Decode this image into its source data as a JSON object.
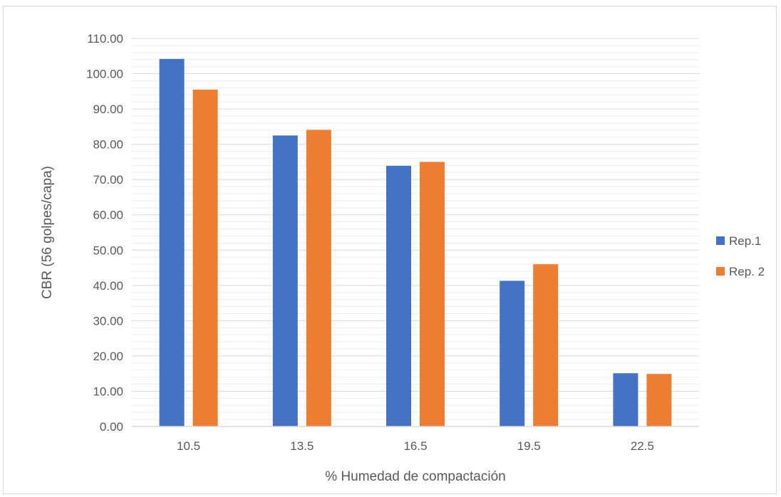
{
  "chart_data": {
    "type": "bar",
    "title": "",
    "xlabel": "% Humedad de compactación",
    "ylabel": "CBR (56 golpes/capa)",
    "categories": [
      "10.5",
      "13.5",
      "16.5",
      "19.5",
      "22.5"
    ],
    "series": [
      {
        "name": "Rep.1",
        "color": "#4472c4",
        "values": [
          104.2,
          82.5,
          73.9,
          41.3,
          15.1
        ]
      },
      {
        "name": "Rep. 2",
        "color": "#ed7d31",
        "values": [
          95.5,
          84.1,
          75.0,
          46.0,
          14.9
        ]
      }
    ],
    "ylim": [
      0,
      110
    ],
    "ytick_step": 10,
    "ytick_labels": [
      "0.00",
      "10.00",
      "20.00",
      "30.00",
      "40.00",
      "50.00",
      "60.00",
      "70.00",
      "80.00",
      "90.00",
      "100.00",
      "110.00"
    ],
    "grid": true,
    "legend_position": "right"
  }
}
